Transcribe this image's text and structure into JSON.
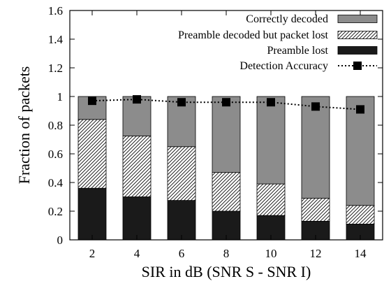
{
  "chart_data": {
    "type": "bar",
    "stacked": true,
    "xlabel": "SIR in dB (SNR S - SNR I)",
    "ylabel": "Fraction of packets",
    "categories": [
      "2",
      "4",
      "6",
      "8",
      "10",
      "12",
      "14"
    ],
    "ylim": [
      0,
      1.6
    ],
    "yticks": [
      "0",
      "0.2",
      "0.4",
      "0.6",
      "0.8",
      "1",
      "1.2",
      "1.4",
      "1.6"
    ],
    "grid": false,
    "legend_position": "top-right",
    "series": [
      {
        "name": "Preamble lost",
        "values": [
          0.36,
          0.3,
          0.275,
          0.2,
          0.17,
          0.13,
          0.11
        ],
        "color": "#1a1a1a",
        "pattern": "solid"
      },
      {
        "name": "Preamble decoded but packet lost",
        "values": [
          0.48,
          0.425,
          0.375,
          0.27,
          0.22,
          0.16,
          0.13
        ],
        "color": "#ffffff",
        "pattern": "hatched"
      },
      {
        "name": "Correctly decoded",
        "values": [
          0.16,
          0.275,
          0.35,
          0.53,
          0.61,
          0.71,
          0.76
        ],
        "color": "#8c8c8c",
        "pattern": "solid"
      }
    ],
    "line_series": {
      "name": "Detection Accuracy",
      "values": [
        0.97,
        0.98,
        0.96,
        0.96,
        0.96,
        0.93,
        0.91
      ],
      "style": "dotted",
      "marker": "square"
    },
    "legend_order": [
      "Correctly decoded",
      "Preamble decoded but packet lost",
      "Preamble lost",
      "Detection Accuracy"
    ]
  }
}
